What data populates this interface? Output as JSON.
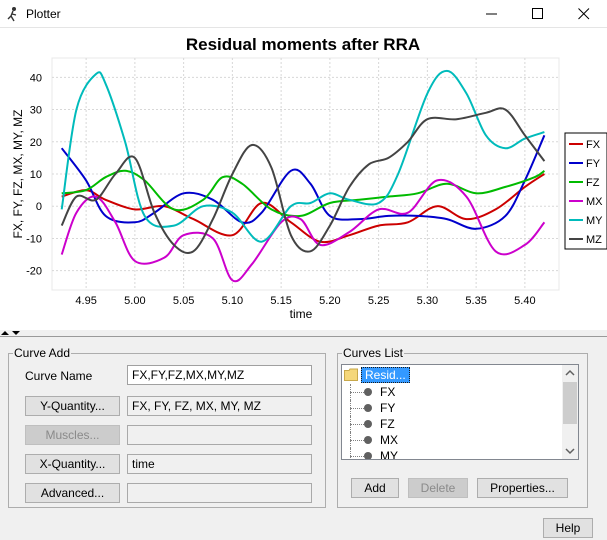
{
  "window": {
    "title": "Plotter"
  },
  "chart_data": {
    "type": "line",
    "title": "Residual moments after RRA",
    "xlabel": "time",
    "ylabel": "FX, FY, FZ, MX, MY, MZ",
    "xlim": [
      4.915,
      5.435
    ],
    "ylim": [
      -26,
      46
    ],
    "xticks": [
      "4.95",
      "5.00",
      "5.05",
      "5.10",
      "5.15",
      "5.20",
      "5.25",
      "5.30",
      "5.35",
      "5.40"
    ],
    "yticks": [
      "-20",
      "-10",
      "0",
      "10",
      "20",
      "30",
      "40"
    ],
    "legend_position": "right",
    "grid": true,
    "series": [
      {
        "name": "FX",
        "color": "#cc0000",
        "x": [
          4.925,
          4.95,
          4.97,
          5.0,
          5.03,
          5.06,
          5.1,
          5.13,
          5.16,
          5.19,
          5.22,
          5.25,
          5.28,
          5.31,
          5.34,
          5.37,
          5.4,
          5.42
        ],
        "y": [
          3,
          5,
          2,
          -1,
          0,
          -4,
          -9,
          1,
          -5,
          -11,
          -9,
          -6,
          -5,
          0,
          -4,
          -1,
          6,
          10
        ]
      },
      {
        "name": "FY",
        "color": "#0000cc",
        "x": [
          4.925,
          4.95,
          4.97,
          5.0,
          5.02,
          5.05,
          5.08,
          5.11,
          5.13,
          5.16,
          5.18,
          5.2,
          5.23,
          5.26,
          5.29,
          5.32,
          5.35,
          5.38,
          5.4,
          5.42
        ],
        "y": [
          18,
          8,
          -3,
          -5,
          -2,
          4,
          2,
          -5,
          -2,
          11,
          7,
          -3,
          -4,
          -3,
          -3,
          -4,
          -7,
          -3,
          8,
          22
        ]
      },
      {
        "name": "FZ",
        "color": "#00bb00",
        "x": [
          4.925,
          4.95,
          4.97,
          4.99,
          5.01,
          5.04,
          5.07,
          5.09,
          5.11,
          5.14,
          5.17,
          5.2,
          5.23,
          5.26,
          5.29,
          5.32,
          5.35,
          5.38,
          5.41,
          5.42
        ],
        "y": [
          4,
          5,
          9,
          11,
          8,
          -1,
          2,
          9,
          7,
          -1,
          -3,
          1,
          2,
          3,
          4,
          7,
          4,
          6,
          9,
          11
        ]
      },
      {
        "name": "MX",
        "color": "#cc00cc",
        "x": [
          4.925,
          4.94,
          4.96,
          4.98,
          5.0,
          5.03,
          5.05,
          5.08,
          5.1,
          5.12,
          5.15,
          5.17,
          5.19,
          5.22,
          5.25,
          5.28,
          5.31,
          5.34,
          5.37,
          5.4,
          5.42
        ],
        "y": [
          -15,
          -2,
          3,
          -5,
          -17,
          -16,
          -9,
          -10,
          -23,
          -18,
          -5,
          -4,
          -12,
          -8,
          -1,
          -2,
          8,
          3,
          -14,
          -12,
          -5
        ]
      },
      {
        "name": "MY",
        "color": "#00bbbb",
        "x": [
          4.925,
          4.94,
          4.96,
          4.97,
          4.99,
          5.01,
          5.04,
          5.07,
          5.1,
          5.13,
          5.16,
          5.18,
          5.2,
          5.22,
          5.25,
          5.27,
          5.3,
          5.32,
          5.34,
          5.36,
          5.38,
          5.4,
          5.42
        ],
        "y": [
          -1,
          30,
          41,
          38,
          20,
          -3,
          -6,
          0,
          -2,
          -11,
          0,
          1,
          4,
          2,
          1,
          10,
          35,
          42,
          35,
          22,
          18,
          21,
          23
        ]
      },
      {
        "name": "MZ",
        "color": "#444444",
        "x": [
          4.925,
          4.94,
          4.96,
          4.98,
          5.0,
          5.02,
          5.04,
          5.06,
          5.08,
          5.1,
          5.12,
          5.14,
          5.16,
          5.18,
          5.2,
          5.22,
          5.24,
          5.26,
          5.28,
          5.3,
          5.33,
          5.36,
          5.38,
          5.4,
          5.42
        ],
        "y": [
          -6,
          3,
          2,
          10,
          15,
          -2,
          -12,
          -14,
          -4,
          10,
          19,
          12,
          -9,
          -14,
          -6,
          6,
          13,
          15,
          20,
          27,
          27,
          29,
          30,
          22,
          14
        ]
      }
    ]
  },
  "curve_add": {
    "legend": "Curve Add",
    "curve_name_label": "Curve Name",
    "curve_name_value": "FX,FY,FZ,MX,MY,MZ",
    "y_quantity_button": "Y-Quantity...",
    "y_quantity_value": "FX, FY, FZ, MX, MY, MZ",
    "muscles_button": "Muscles...",
    "muscles_value": "",
    "x_quantity_button": "X-Quantity...",
    "x_quantity_value": "time",
    "advanced_button": "Advanced...",
    "advanced_value": ""
  },
  "curves_list": {
    "legend": "Curves List",
    "root_label": "Resid...",
    "items": [
      {
        "label": "FX"
      },
      {
        "label": "FY"
      },
      {
        "label": "FZ"
      },
      {
        "label": "MX"
      },
      {
        "label": "MY"
      }
    ],
    "add_button": "Add",
    "delete_button": "Delete",
    "properties_button": "Properties..."
  },
  "help_button": "Help"
}
